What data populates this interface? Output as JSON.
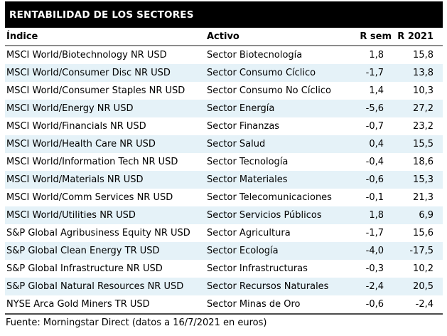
{
  "chart_data": {
    "type": "table",
    "title": "RENTABILIDAD DE LOS SECTORES",
    "columns": [
      "Índice",
      "Activo",
      "R sem",
      "R 2021"
    ],
    "rows": [
      [
        "MSCI World/Biotechnology NR USD",
        "Sector Biotecnología",
        "1,8",
        "15,8"
      ],
      [
        "MSCI World/Consumer Disc NR USD",
        "Sector Consumo Cíclico",
        "-1,7",
        "13,8"
      ],
      [
        "MSCI World/Consumer Staples NR USD",
        "Sector Consumo No Cíclico",
        "1,4",
        "10,3"
      ],
      [
        "MSCI World/Energy NR USD",
        "Sector Energía",
        "-5,6",
        "27,2"
      ],
      [
        "MSCI World/Financials NR USD",
        "Sector Finanzas",
        "-0,7",
        "23,2"
      ],
      [
        "MSCI World/Health Care NR USD",
        "Sector Salud",
        "0,4",
        "15,5"
      ],
      [
        "MSCI World/Information Tech NR USD",
        "Sector Tecnología",
        "-0,4",
        "18,6"
      ],
      [
        "MSCI World/Materials NR USD",
        "Sector Materiales",
        "-0,6",
        "15,3"
      ],
      [
        "MSCI World/Comm Services NR USD",
        "Sector Telecomunicaciones",
        "-0,1",
        "21,3"
      ],
      [
        "MSCI World/Utilities NR USD",
        "Sector Servicios Públicos",
        "1,8",
        "6,9"
      ],
      [
        "S&P Global Agribusiness Equity NR USD",
        "Sector Agricultura",
        "-1,7",
        "15,6"
      ],
      [
        "S&P Global Clean Energy TR USD",
        "Sector Ecología",
        "-4,0",
        "-17,5"
      ],
      [
        "S&P Global Infrastructure NR USD",
        "Sector Infrastructuras",
        "-0,3",
        "10,2"
      ],
      [
        "S&P Global Natural Resources NR USD",
        "Sector Recursos Naturales",
        "-2,4",
        "20,5"
      ],
      [
        "NYSE Arca Gold Miners TR USD",
        "Sector Minas de Oro",
        "-0,6",
        "-2,4"
      ]
    ],
    "footer": "Fuente: Morningstar Direct (datos a 16/7/2021 en euros)",
    "layout_hints": {
      "grid": "off",
      "alternating_rows": true
    }
  },
  "colors": {
    "title_bg": "#000000",
    "title_text": "#ffffff",
    "row_alt_bg": "#e5f2f8",
    "header_rule": "#8c8c8c",
    "bottom_rule": "#4d4d4d",
    "text": "#000000"
  }
}
